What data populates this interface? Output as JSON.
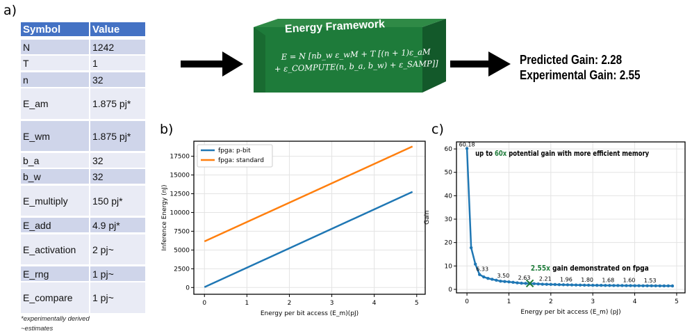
{
  "panels": {
    "a": "a)",
    "b": "b)",
    "c": "c)"
  },
  "table": {
    "headers": [
      "Symbol",
      "Value"
    ],
    "rows": [
      {
        "symbol": "N",
        "value": "1242"
      },
      {
        "symbol": "T",
        "value": "1"
      },
      {
        "symbol": "n",
        "value": "32"
      },
      {
        "symbol": "E_am",
        "value": "1.875 pj*"
      },
      {
        "symbol": "E_wm",
        "value": "1.875 pj*"
      },
      {
        "symbol": "b_a",
        "value": "32"
      },
      {
        "symbol": "b_w",
        "value": "32"
      },
      {
        "symbol": "E_multiply",
        "value": "150 pj*"
      },
      {
        "symbol": "E_add",
        "value": "4.9 pj*"
      },
      {
        "symbol": "E_activation",
        "value": "2 pj~"
      },
      {
        "symbol": "E_rng",
        "value": "1 pj~"
      },
      {
        "symbol": "E_compare",
        "value": "1 pj~"
      }
    ],
    "notes": [
      "*experimentally derived",
      "~estimates"
    ],
    "colors": {
      "header": "#4472c4",
      "dark": "#cfd5ea",
      "light": "#e9ebf5"
    }
  },
  "framework": {
    "title": "Energy Framework",
    "equation_line1": "E = N [nb_w ε_wM + T [(n + 1)ε_aM",
    "equation_line2": "+ ε_COMPUTE(n, b_a, b_w) + ε_SAMP]]",
    "color": "#1e7b3a"
  },
  "results": {
    "predicted": "Predicted Gain: 2.28",
    "experimental": "Experimental Gain: 2.55"
  },
  "chart_data": [
    {
      "type": "line",
      "xlabel": "Energy per bit access (E_m)(pJ)",
      "ylabel": "Inference Energy (nJ)",
      "xlim": [
        -0.25,
        5.2
      ],
      "ylim": [
        -900,
        19500
      ],
      "xticks": [
        0,
        1,
        2,
        3,
        4,
        5
      ],
      "yticks": [
        0,
        2500,
        5000,
        7500,
        10000,
        12500,
        15000,
        17500
      ],
      "grid": true,
      "legend": "top-left",
      "x": [
        0,
        4.9
      ],
      "series": [
        {
          "name": "fpga: p-bit",
          "values": [
            50,
            12750
          ],
          "color": "#1f77b4"
        },
        {
          "name": "fpga: standard",
          "values": [
            6150,
            18800
          ],
          "color": "#ff7f0e"
        }
      ]
    },
    {
      "type": "line",
      "xlabel": "Energy per bit access (E_m) (pJ)",
      "ylabel": "Gain",
      "xlim": [
        -0.25,
        5.2
      ],
      "ylim": [
        -1.5,
        63
      ],
      "xticks": [
        0,
        1,
        2,
        3,
        4,
        5
      ],
      "yticks": [
        0,
        10,
        20,
        30,
        40,
        50,
        60
      ],
      "grid": true,
      "x": [
        0,
        0.1,
        0.2,
        0.3,
        0.4,
        0.5,
        0.6,
        0.7,
        0.8,
        0.9,
        1.0,
        1.1,
        1.2,
        1.3,
        1.4,
        1.5,
        1.6,
        1.7,
        1.8,
        1.9,
        2.0,
        2.1,
        2.2,
        2.3,
        2.4,
        2.5,
        2.6,
        2.7,
        2.8,
        2.9,
        3.0,
        3.1,
        3.2,
        3.3,
        3.4,
        3.5,
        3.6,
        3.7,
        3.8,
        3.9,
        4.0,
        4.1,
        4.2,
        4.3,
        4.4,
        4.5,
        4.6,
        4.7,
        4.8,
        4.9
      ],
      "values": [
        60.18,
        17.8,
        10.8,
        6.33,
        5.3,
        4.7,
        4.3,
        3.9,
        3.5,
        3.35,
        3.2,
        3.0,
        2.8,
        2.63,
        2.55,
        2.48,
        2.41,
        2.32,
        2.21,
        2.17,
        2.12,
        2.07,
        2.01,
        1.96,
        1.93,
        1.9,
        1.86,
        1.83,
        1.8,
        1.78,
        1.75,
        1.73,
        1.7,
        1.68,
        1.66,
        1.65,
        1.63,
        1.62,
        1.6,
        1.59,
        1.57,
        1.56,
        1.54,
        1.53,
        1.52,
        1.51,
        1.5,
        1.49,
        1.48,
        1.47
      ],
      "data_labels": [
        {
          "x": 0,
          "text": "60.18"
        },
        {
          "x": 0.3,
          "text": "6.33"
        },
        {
          "x": 0.8,
          "text": "3.50"
        },
        {
          "x": 1.3,
          "text": "2.63"
        },
        {
          "x": 1.8,
          "text": "2.21"
        },
        {
          "x": 2.3,
          "text": "1.96"
        },
        {
          "x": 2.8,
          "text": "1.80"
        },
        {
          "x": 3.3,
          "text": "1.68"
        },
        {
          "x": 3.8,
          "text": "1.60"
        },
        {
          "x": 4.3,
          "text": "1.53"
        }
      ],
      "marker": {
        "x": 1.5,
        "y": 2.55,
        "color": "#1e7b3a"
      },
      "annotations": [
        {
          "pre": "up to ",
          "highlight": "60x",
          "post": " potential gain with more efficient memory",
          "x": 0.2,
          "y": 57
        },
        {
          "pre": "",
          "highlight": "2.55x",
          "post": " gain demonstrated on fpga",
          "x": 1.52,
          "y": 8
        }
      ],
      "color": "#1f77b4",
      "highlight_color": "#1e7b3a"
    }
  ]
}
